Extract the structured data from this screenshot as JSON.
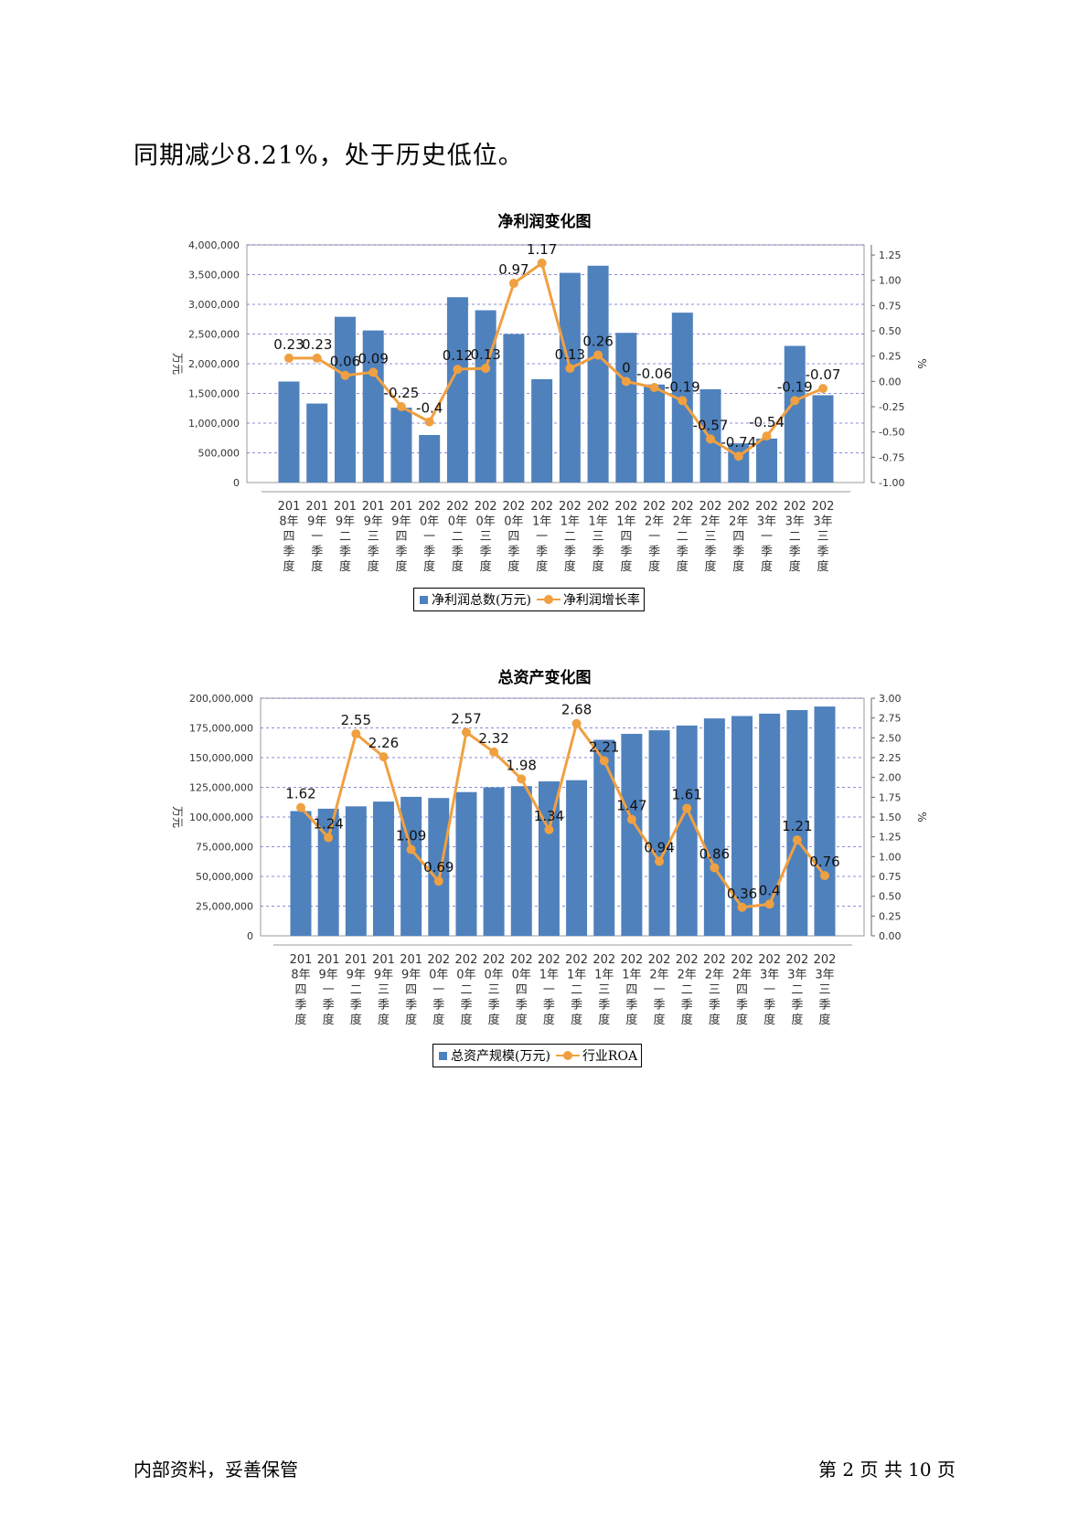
{
  "body_text": "同期减少8.21%，处于历史低位。",
  "footer": {
    "left": "内部资料，妥善保管",
    "right": "第 2 页   共 10 页"
  },
  "colors": {
    "bar": "#4f81bd",
    "line": "#f0a040",
    "grid": "#6666cc"
  },
  "chart_data": [
    {
      "type": "bar",
      "title": "净利润变化图",
      "ylabel": "万元",
      "y2label": "%",
      "ylim": [
        0,
        4000000
      ],
      "y_ticks": [
        "0",
        "500,000",
        "1,000,000",
        "1,500,000",
        "2,000,000",
        "2,500,000",
        "3,000,000",
        "3,500,000",
        "4,000,000"
      ],
      "y2lim": [
        -1.0,
        1.35
      ],
      "y2_ticks": [
        "-1.00",
        "-0.75",
        "-0.50",
        "-0.25",
        "0.00",
        "0.25",
        "0.50",
        "0.75",
        "1.00",
        "1.25"
      ],
      "categories": [
        "2018年四季度",
        "2019年一季度",
        "2019年二季度",
        "2019年三季度",
        "2019年四季度",
        "2020年一季度",
        "2020年二季度",
        "2020年三季度",
        "2020年四季度",
        "2021年一季度",
        "2021年二季度",
        "2021年三季度",
        "2021年四季度",
        "2022年一季度",
        "2022年二季度",
        "2022年三季度",
        "2022年四季度",
        "2023年一季度",
        "2023年二季度",
        "2023年三季度"
      ],
      "series": [
        {
          "name": "净利润总数(万元)",
          "type": "bar",
          "values": [
            1700000,
            1330000,
            2790000,
            2560000,
            1260000,
            800000,
            3120000,
            2900000,
            2500000,
            1740000,
            3530000,
            3650000,
            2520000,
            1650000,
            2860000,
            1570000,
            660000,
            740000,
            2300000,
            1470000
          ]
        },
        {
          "name": "净利润增长率",
          "type": "line",
          "axis": "right",
          "values": [
            0.23,
            0.23,
            0.06,
            0.09,
            -0.25,
            -0.4,
            0.12,
            0.13,
            0.97,
            1.17,
            0.13,
            0.26,
            0,
            -0.06,
            -0.19,
            -0.57,
            -0.74,
            -0.54,
            -0.19,
            -0.07
          ],
          "labels": [
            "0.23",
            "0.23",
            "0.06",
            "0.09",
            "-0.25",
            "-0.4",
            "0.12",
            "0.13",
            "0.97",
            "1.17",
            "0.13",
            "0.26",
            "0",
            "-0.06",
            "-0.19",
            "-0.57",
            "-0.74",
            "-0.54",
            "-0.19",
            "-0.07"
          ]
        }
      ],
      "grid": true,
      "legend_position": "bottom"
    },
    {
      "type": "bar",
      "title": "总资产变化图",
      "ylabel": "万元",
      "y2label": "%",
      "ylim": [
        0,
        200000000
      ],
      "y_ticks": [
        "0",
        "25,000,000",
        "50,000,000",
        "75,000,000",
        "100,000,000",
        "125,000,000",
        "150,000,000",
        "175,000,000",
        "200,000,000"
      ],
      "y2lim": [
        0,
        3.0
      ],
      "y2_ticks": [
        "0.00",
        "0.25",
        "0.50",
        "0.75",
        "1.00",
        "1.25",
        "1.50",
        "1.75",
        "2.00",
        "2.25",
        "2.50",
        "2.75",
        "3.00"
      ],
      "categories": [
        "2018年四季度",
        "2019年一季度",
        "2019年二季度",
        "2019年三季度",
        "2019年四季度",
        "2020年一季度",
        "2020年二季度",
        "2020年三季度",
        "2020年四季度",
        "2021年一季度",
        "2021年二季度",
        "2021年三季度",
        "2021年四季度",
        "2022年一季度",
        "2022年二季度",
        "2022年三季度",
        "2022年四季度",
        "2023年一季度",
        "2023年二季度",
        "2023年三季度"
      ],
      "series": [
        {
          "name": "总资产规模(万元)",
          "type": "bar",
          "values": [
            105000000,
            107000000,
            109000000,
            113000000,
            117000000,
            116000000,
            121000000,
            125000000,
            126000000,
            130000000,
            131000000,
            165000000,
            170000000,
            173000000,
            177000000,
            183000000,
            185000000,
            187000000,
            190000000,
            193000000
          ]
        },
        {
          "name": "行业ROA",
          "type": "line",
          "axis": "right",
          "values": [
            1.62,
            1.24,
            2.55,
            2.26,
            1.09,
            0.69,
            2.57,
            2.32,
            1.98,
            1.34,
            2.68,
            2.21,
            1.47,
            0.94,
            1.61,
            0.86,
            0.36,
            0.4,
            1.21,
            0.76
          ],
          "labels": [
            "1.62",
            "1.24",
            "2.55",
            "2.26",
            "1.09",
            "0.69",
            "2.57",
            "2.32",
            "1.98",
            "1.34",
            "2.68",
            "2.21",
            "1.47",
            "0.94",
            "1.61",
            "0.86",
            "0.36",
            "0.4",
            "1.21",
            "0.76"
          ]
        }
      ],
      "grid": true,
      "legend_position": "bottom"
    }
  ]
}
